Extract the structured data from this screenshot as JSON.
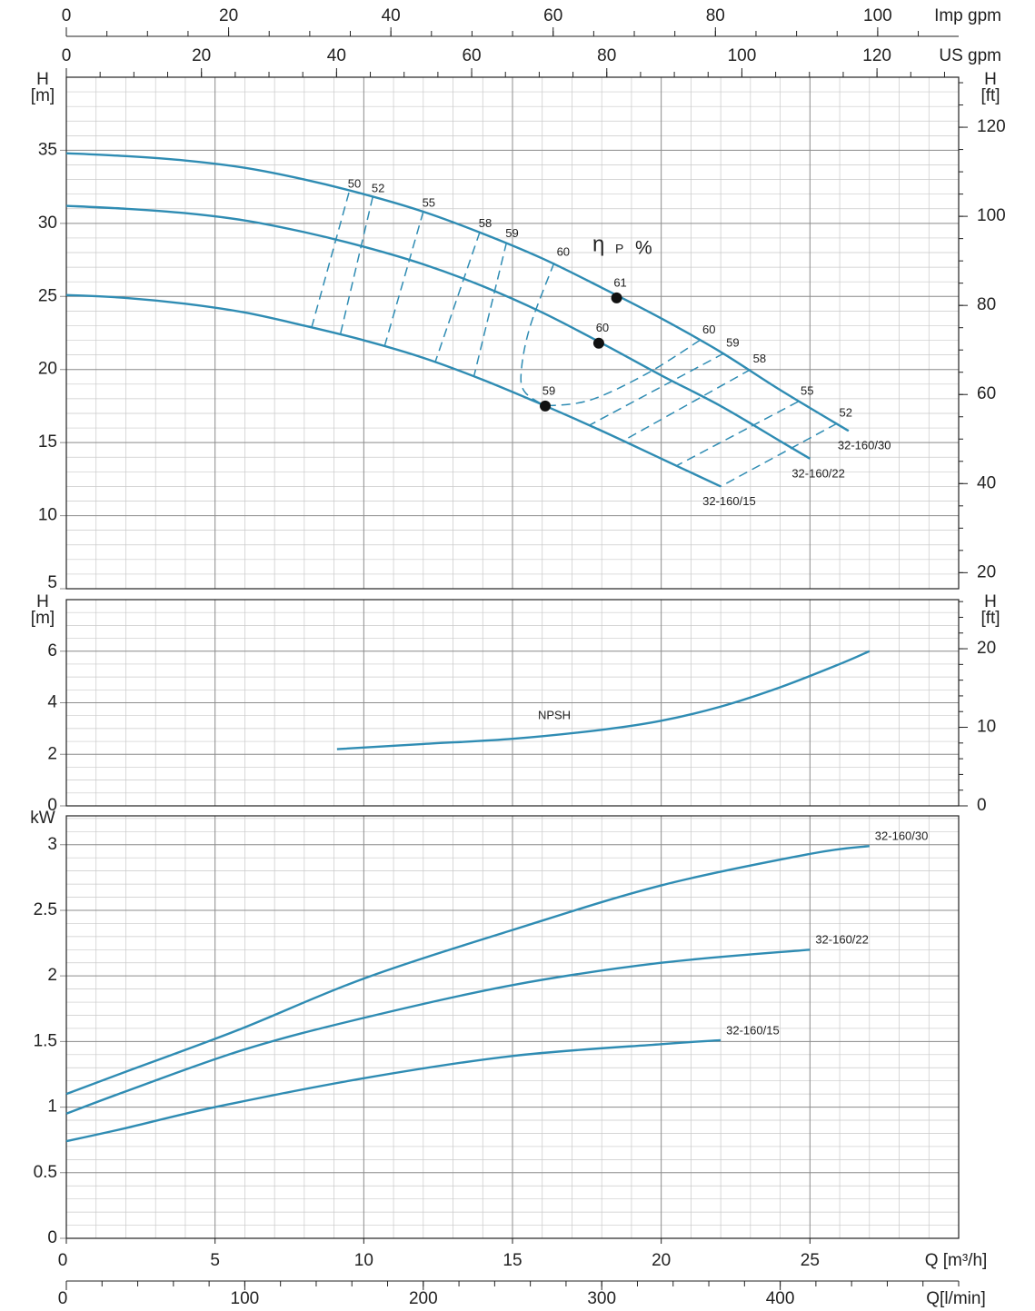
{
  "chart_data": [
    {
      "type": "line",
      "xlim": [
        0,
        30
      ],
      "ylim": [
        5,
        40
      ],
      "yticks": [
        5,
        10,
        15,
        20,
        25,
        30,
        35
      ],
      "ylabel": [
        "H",
        "[m]"
      ],
      "y2label": [
        "H",
        "[ft]"
      ],
      "y2lim": [
        16.4,
        131.23
      ],
      "y2ticks": [
        20,
        40,
        60,
        80,
        100,
        120
      ],
      "x_minor_step": 1,
      "y_minor_step": 1,
      "y2_minor_step": 5,
      "grid": true,
      "top_axes": [
        {
          "label": "Imp gpm",
          "xlim": [
            0,
            109.98
          ],
          "xticks": [
            0,
            20,
            40,
            60,
            80,
            100
          ],
          "minor_step": 5
        },
        {
          "label": "US gpm",
          "xlim": [
            0,
            132.09
          ],
          "xticks": [
            0,
            20,
            40,
            60,
            80,
            100,
            120
          ],
          "minor_step": 5
        }
      ],
      "series": [
        {
          "name": "32-160/30",
          "color": "#2f8cb3",
          "x": [
            0,
            2,
            4,
            6,
            8,
            10,
            12,
            14,
            16,
            18,
            20,
            22,
            24,
            26.3
          ],
          "values": [
            34.8,
            34.6,
            34.3,
            33.8,
            33.0,
            32.0,
            30.8,
            29.3,
            27.6,
            25.6,
            23.5,
            21.2,
            18.6,
            15.8
          ]
        },
        {
          "name": "32-160/22",
          "color": "#2f8cb3",
          "x": [
            0,
            2,
            4,
            6,
            8,
            10,
            12,
            14,
            16,
            18,
            20,
            22,
            24,
            25
          ],
          "values": [
            31.2,
            31.0,
            30.7,
            30.2,
            29.4,
            28.4,
            27.2,
            25.7,
            23.9,
            21.8,
            19.6,
            17.5,
            15.1,
            13.9
          ]
        },
        {
          "name": "32-160/15",
          "color": "#2f8cb3",
          "x": [
            0,
            2,
            4,
            6,
            8,
            10,
            12,
            14,
            16,
            18,
            20,
            22
          ],
          "values": [
            25.1,
            24.9,
            24.5,
            23.9,
            23.0,
            22.0,
            20.8,
            19.3,
            17.6,
            15.8,
            13.9,
            12.0
          ]
        }
      ],
      "efficiency_contours": [
        {
          "label": 50,
          "x": [
            9.5,
            8.25
          ],
          "values": [
            32.1,
            22.9
          ]
        },
        {
          "label": 52,
          "x": [
            10.3,
            9.2
          ],
          "values": [
            31.8,
            22.3
          ]
        },
        {
          "label": 55,
          "x": [
            12.0,
            10.7
          ],
          "values": [
            30.8,
            21.6
          ]
        },
        {
          "label": 58,
          "x": [
            13.9,
            12.4
          ],
          "values": [
            29.4,
            20.5
          ]
        },
        {
          "label": 59,
          "x": [
            14.8,
            13.7
          ],
          "values": [
            28.7,
            19.5
          ]
        },
        {
          "label": 60,
          "x": [
            16.4,
            15.6,
            15.3,
            15.4,
            16.1
          ],
          "values": [
            27.3,
            23.0,
            20.0,
            18.5,
            17.5
          ]
        },
        {
          "label": 60,
          "x": [
            21.3,
            19.5,
            17.6,
            16.1
          ],
          "values": [
            22.0,
            19.7,
            17.9,
            17.5
          ]
        },
        {
          "label": 59,
          "x": [
            22.1,
            17.6
          ],
          "values": [
            21.1,
            16.2
          ]
        },
        {
          "label": 58,
          "x": [
            23.0,
            18.7
          ],
          "values": [
            20.0,
            15.1
          ]
        },
        {
          "label": 55,
          "x": [
            24.6,
            20.5
          ],
          "values": [
            17.8,
            13.4
          ]
        },
        {
          "label": 52,
          "x": [
            25.9,
            22.0
          ],
          "values": [
            16.3,
            12.0
          ]
        }
      ],
      "efficiency_points": {
        "x": [
          18.5,
          17.9,
          16.1
        ],
        "values": [
          24.9,
          21.8,
          17.5
        ],
        "efficiency": [
          61,
          60,
          59
        ]
      },
      "efficiency_annotation": [
        "η",
        "P",
        "%"
      ]
    },
    {
      "type": "line",
      "xlim": [
        0,
        30
      ],
      "ylim": [
        0,
        8
      ],
      "yticks": [
        0,
        2,
        4,
        6
      ],
      "ylabel": [
        "H",
        "[m]"
      ],
      "y2label": [
        "H",
        "[ft]"
      ],
      "y2lim": [
        0,
        26.25
      ],
      "y2ticks": [
        0,
        10,
        20
      ],
      "x_minor_step": 1,
      "y_minor_step": 0.5,
      "y2_minor_step": 2,
      "grid": true,
      "series": [
        {
          "name": "NPSH",
          "color": "#2f8cb3",
          "x": [
            9.1,
            12,
            15,
            18,
            20,
            22,
            24,
            26,
            27
          ],
          "values": [
            2.2,
            2.4,
            2.6,
            2.95,
            3.3,
            3.85,
            4.6,
            5.5,
            6.0
          ]
        }
      ]
    },
    {
      "type": "line",
      "xlim": [
        0,
        30
      ],
      "ylim": [
        0,
        3.22
      ],
      "yticks": [
        0,
        0.5,
        1,
        1.5,
        2,
        2.5,
        3
      ],
      "xticks": [
        0,
        5,
        10,
        15,
        20,
        25
      ],
      "xlabel": "Q [m³/h]",
      "ylabel": [
        "kW"
      ],
      "x_minor_step": 1,
      "y_minor_step": 0.1,
      "grid": true,
      "bottom_axis": {
        "label": "Q[l/min]",
        "xlim": [
          0,
          500
        ],
        "xticks": [
          0,
          100,
          200,
          300,
          400
        ],
        "minor_step": 20
      },
      "series": [
        {
          "name": "32-160/30",
          "color": "#2f8cb3",
          "x": [
            0,
            2,
            5.8,
            10,
            15,
            20,
            25,
            27
          ],
          "values": [
            1.1,
            1.27,
            1.59,
            1.98,
            2.35,
            2.69,
            2.93,
            2.99
          ]
        },
        {
          "name": "32-160/22",
          "color": "#2f8cb3",
          "x": [
            0,
            2,
            6,
            10,
            15,
            20,
            25
          ],
          "values": [
            0.95,
            1.12,
            1.44,
            1.68,
            1.93,
            2.1,
            2.2
          ]
        },
        {
          "name": "32-160/15",
          "color": "#2f8cb3",
          "x": [
            0,
            2,
            5,
            10,
            15,
            20,
            22
          ],
          "values": [
            0.74,
            0.84,
            1.0,
            1.22,
            1.39,
            1.48,
            1.51
          ]
        }
      ]
    }
  ]
}
